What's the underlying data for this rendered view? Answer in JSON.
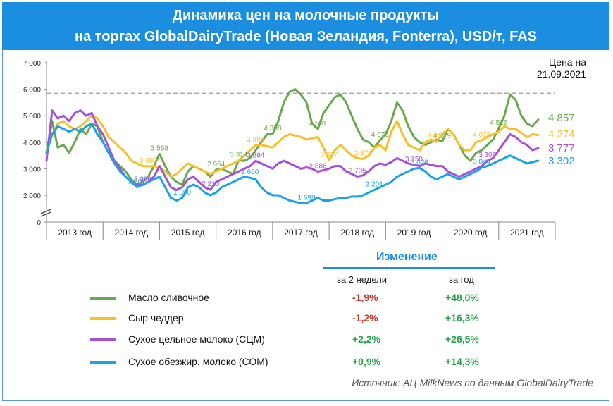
{
  "header": {
    "title_line1": "Динамика цен на молочные продукты",
    "title_line2": "на торгах GlobalDairyTrade (Новая Зеландия, Fonterra), USD/т, FAS"
  },
  "price_date": {
    "line1": "Цена на",
    "line2": "21.09.2021"
  },
  "changes": {
    "title": "Изменение",
    "col_2weeks": "за 2 недели",
    "col_year": "за год"
  },
  "source": "Источник: АЦ MilkNews по данным GlobalDairyTrade",
  "chart_data": {
    "type": "line",
    "y_ticks": [
      "7 000",
      "6 000",
      "5 000",
      "4 000",
      "3 000",
      "2 000",
      "0"
    ],
    "ylim": [
      0,
      7000
    ],
    "x_categories": [
      "2013 год",
      "2014 год",
      "2015 год",
      "2016 год",
      "2017 год",
      "2018 год",
      "2019 год",
      "2020 год",
      "2021 год"
    ],
    "reference_line": 5850,
    "series": [
      {
        "name": "Масло сливочное",
        "color": "#6aa84f",
        "current_label": "4 857",
        "change_2w": "-1,9%",
        "change_year": "+48,0%",
        "x": [
          2013.0,
          2013.1,
          2013.2,
          2013.3,
          2013.4,
          2013.5,
          2013.6,
          2013.7,
          2013.8,
          2013.9,
          2014.0,
          2014.1,
          2014.2,
          2014.3,
          2014.4,
          2014.5,
          2014.6,
          2014.7,
          2014.8,
          2014.9,
          2015.0,
          2015.1,
          2015.2,
          2015.3,
          2015.4,
          2015.5,
          2015.6,
          2015.7,
          2015.8,
          2015.9,
          2016.0,
          2016.1,
          2016.2,
          2016.3,
          2016.4,
          2016.5,
          2016.6,
          2016.7,
          2016.8,
          2016.9,
          2017.0,
          2017.1,
          2017.2,
          2017.3,
          2017.4,
          2017.5,
          2017.6,
          2017.7,
          2017.8,
          2017.9,
          2018.0,
          2018.1,
          2018.2,
          2018.3,
          2018.4,
          2018.5,
          2018.6,
          2018.7,
          2018.8,
          2018.9,
          2019.0,
          2019.1,
          2019.2,
          2019.3,
          2019.4,
          2019.5,
          2019.6,
          2019.7,
          2019.8,
          2019.9,
          2020.0,
          2020.1,
          2020.2,
          2020.3,
          2020.4,
          2020.5,
          2020.6,
          2020.7,
          2020.8,
          2020.9,
          2021.0,
          2021.1,
          2021.2,
          2021.3,
          2021.4,
          2021.5,
          2021.6,
          2021.7
        ],
        "y": [
          3600,
          4800,
          3800,
          3900,
          3600,
          4000,
          4500,
          4300,
          4700,
          4600,
          4000,
          3600,
          3300,
          3100,
          2900,
          2600,
          2400,
          2500,
          2700,
          3100,
          3558,
          3100,
          2700,
          2500,
          2400,
          2900,
          3100,
          3000,
          2900,
          2700,
          2964,
          3000,
          2900,
          2800,
          3314,
          3300,
          3400,
          3700,
          4000,
          4300,
          4308,
          4800,
          5500,
          5900,
          6000,
          5800,
          5500,
          4700,
          4501,
          5100,
          5400,
          5700,
          5800,
          5500,
          5000,
          4500,
          4100,
          4000,
          3800,
          4076,
          4300,
          4800,
          5500,
          5200,
          4600,
          4200,
          4000,
          3900,
          4000,
          4100,
          4029,
          4500,
          4300,
          3900,
          3500,
          3300,
          3600,
          3700,
          3900,
          4100,
          4526,
          5000,
          5800,
          5600,
          5000,
          4700,
          4600,
          4857
        ]
      },
      {
        "name": "Сыр чеддер",
        "color": "#f6c026",
        "current_label": "4 274",
        "change_2w": "-1,2%",
        "change_year": "+16,3%",
        "x": [
          2013.0,
          2013.1,
          2013.2,
          2013.3,
          2013.4,
          2013.5,
          2013.6,
          2013.7,
          2013.8,
          2013.9,
          2014.0,
          2014.1,
          2014.2,
          2014.3,
          2014.4,
          2014.5,
          2014.6,
          2014.7,
          2014.8,
          2014.9,
          2015.0,
          2015.1,
          2015.2,
          2015.3,
          2015.4,
          2015.5,
          2015.6,
          2015.7,
          2015.8,
          2015.9,
          2016.0,
          2016.1,
          2016.2,
          2016.3,
          2016.4,
          2016.5,
          2016.6,
          2016.7,
          2016.8,
          2016.9,
          2017.0,
          2017.1,
          2017.2,
          2017.3,
          2017.4,
          2017.5,
          2017.6,
          2017.7,
          2017.8,
          2017.9,
          2018.0,
          2018.1,
          2018.2,
          2018.3,
          2018.4,
          2018.5,
          2018.6,
          2018.7,
          2018.8,
          2018.9,
          2019.0,
          2019.1,
          2019.2,
          2019.3,
          2019.4,
          2019.5,
          2019.6,
          2019.7,
          2019.8,
          2019.9,
          2020.0,
          2020.1,
          2020.2,
          2020.3,
          2020.4,
          2020.5,
          2020.6,
          2020.7,
          2020.8,
          2020.9,
          2021.0,
          2021.1,
          2021.2,
          2021.3,
          2021.4,
          2021.5,
          2021.6,
          2021.7
        ],
        "y": [
          3700,
          4300,
          4700,
          4800,
          4600,
          4500,
          4600,
          4800,
          5000,
          4900,
          4600,
          4200,
          4000,
          3800,
          3600,
          3300,
          3200,
          3100,
          3090,
          3100,
          3050,
          2900,
          2700,
          2800,
          3000,
          3200,
          3100,
          3000,
          2900,
          2800,
          2900,
          3000,
          3100,
          3200,
          3300,
          3500,
          3700,
          3894,
          3900,
          3850,
          3800,
          4000,
          4200,
          4300,
          4250,
          4200,
          4100,
          4150,
          4200,
          3800,
          3317,
          3700,
          3900,
          3700,
          3500,
          3400,
          3371,
          3500,
          3800,
          3900,
          3700,
          4400,
          4800,
          4300,
          3900,
          3800,
          3700,
          4000,
          4100,
          4015,
          4300,
          4500,
          4300,
          3900,
          3700,
          3700,
          4000,
          4078,
          4200,
          4300,
          4400,
          4600,
          4500,
          4500,
          4350,
          4200,
          4300,
          4274
        ]
      },
      {
        "name": "Сухое цельное молоко (СЦМ)",
        "color": "#a84fd8",
        "current_label": "3 777",
        "change_2w": "+2,2%",
        "change_year": "+26,5%",
        "x": [
          2013.0,
          2013.1,
          2013.2,
          2013.3,
          2013.4,
          2013.5,
          2013.6,
          2013.7,
          2013.8,
          2013.9,
          2014.0,
          2014.1,
          2014.2,
          2014.3,
          2014.4,
          2014.5,
          2014.6,
          2014.7,
          2014.8,
          2014.9,
          2015.0,
          2015.1,
          2015.2,
          2015.3,
          2015.4,
          2015.5,
          2015.6,
          2015.7,
          2015.8,
          2015.9,
          2016.0,
          2016.1,
          2016.2,
          2016.3,
          2016.4,
          2016.5,
          2016.6,
          2016.7,
          2016.8,
          2016.9,
          2017.0,
          2017.1,
          2017.2,
          2017.3,
          2017.4,
          2017.5,
          2017.6,
          2017.7,
          2017.8,
          2017.9,
          2018.0,
          2018.1,
          2018.2,
          2018.3,
          2018.4,
          2018.5,
          2018.6,
          2018.7,
          2018.8,
          2018.9,
          2019.0,
          2019.1,
          2019.2,
          2019.3,
          2019.4,
          2019.5,
          2019.6,
          2019.7,
          2019.8,
          2019.9,
          2020.0,
          2020.1,
          2020.2,
          2020.3,
          2020.4,
          2020.5,
          2020.6,
          2020.7,
          2020.8,
          2020.9,
          2021.0,
          2021.1,
          2021.2,
          2021.3,
          2021.4,
          2021.5,
          2021.6,
          2021.7
        ],
        "y": [
          3300,
          5200,
          4900,
          5000,
          4800,
          5100,
          5200,
          5000,
          5100,
          4600,
          4300,
          3800,
          3300,
          3000,
          2700,
          2500,
          2400,
          2386,
          2500,
          2700,
          3100,
          2700,
          2300,
          2200,
          2300,
          2600,
          2700,
          2500,
          2300,
          2210,
          2500,
          2600,
          2700,
          2800,
          2900,
          3000,
          3100,
          3294,
          3200,
          3100,
          3000,
          3200,
          3300,
          3200,
          3100,
          3000,
          3050,
          3000,
          2886,
          2950,
          3000,
          3100,
          3100,
          2900,
          2800,
          2705,
          2750,
          2900,
          3100,
          3200,
          3150,
          3250,
          3400,
          3300,
          3200,
          3150,
          3100,
          3200,
          3150,
          3100,
          3100,
          2900,
          2800,
          2700,
          2800,
          2900,
          3000,
          3100,
          3306,
          3400,
          3700,
          4000,
          4300,
          4200,
          4000,
          3900,
          3700,
          3777
        ]
      },
      {
        "name": "Сухое обезжир. молоко (СОМ)",
        "color": "#1aa3e8",
        "current_label": "3 302",
        "change_2w": "+0,9%",
        "change_year": "+14,3%",
        "x": [
          2013.0,
          2013.1,
          2013.2,
          2013.3,
          2013.4,
          2013.5,
          2013.6,
          2013.7,
          2013.8,
          2013.9,
          2014.0,
          2014.1,
          2014.2,
          2014.3,
          2014.4,
          2014.5,
          2014.6,
          2014.7,
          2014.8,
          2014.9,
          2015.0,
          2015.1,
          2015.2,
          2015.3,
          2015.4,
          2015.5,
          2015.6,
          2015.7,
          2015.8,
          2015.9,
          2016.0,
          2016.1,
          2016.2,
          2016.3,
          2016.4,
          2016.5,
          2016.6,
          2016.7,
          2016.8,
          2016.9,
          2017.0,
          2017.1,
          2017.2,
          2017.3,
          2017.4,
          2017.5,
          2017.6,
          2017.7,
          2017.8,
          2017.9,
          2018.0,
          2018.1,
          2018.2,
          2018.3,
          2018.4,
          2018.5,
          2018.6,
          2018.7,
          2018.8,
          2018.9,
          2019.0,
          2019.1,
          2019.2,
          2019.3,
          2019.4,
          2019.5,
          2019.6,
          2019.7,
          2019.8,
          2019.9,
          2020.0,
          2020.1,
          2020.2,
          2020.3,
          2020.4,
          2020.5,
          2020.6,
          2020.7,
          2020.8,
          2020.9,
          2021.0,
          2021.1,
          2021.2,
          2021.3,
          2021.4,
          2021.5,
          2021.6,
          2021.7
        ],
        "y": [
          3600,
          4300,
          4600,
          4500,
          4400,
          4500,
          4400,
          4600,
          4700,
          4300,
          4000,
          3600,
          3200,
          2900,
          2700,
          2500,
          2307,
          2400,
          2500,
          2600,
          2700,
          2300,
          1900,
          1800,
          1890,
          2300,
          2400,
          2300,
          2100,
          2000,
          2100,
          2300,
          2400,
          2500,
          2600,
          2700,
          2660,
          2600,
          2300,
          2100,
          2000,
          2000,
          1900,
          1800,
          1750,
          1700,
          1699,
          1800,
          1900,
          1800,
          1800,
          1850,
          1900,
          1900,
          1950,
          1950,
          2000,
          2100,
          2201,
          2300,
          2400,
          2500,
          2700,
          2800,
          2900,
          3000,
          3026,
          2900,
          2700,
          2600,
          2700,
          2800,
          2700,
          2600,
          2700,
          2800,
          2900,
          3044,
          3100,
          3200,
          3300,
          3400,
          3500,
          3400,
          3300,
          3200,
          3250,
          3302
        ]
      }
    ],
    "annotations": [
      {
        "series": 0,
        "x": 2015.0,
        "value": 3558,
        "text": "3 558"
      },
      {
        "series": 0,
        "x": 2016.0,
        "value": 2964,
        "text": "2 964"
      },
      {
        "series": 0,
        "x": 2016.4,
        "value": 3314,
        "text": "3 314"
      },
      {
        "series": 0,
        "x": 2017.0,
        "value": 4308,
        "text": "4 308"
      },
      {
        "series": 0,
        "x": 2017.8,
        "value": 4501,
        "text": "4 501"
      },
      {
        "series": 0,
        "x": 2018.9,
        "value": 4076,
        "text": "4 076"
      },
      {
        "series": 0,
        "x": 2020.0,
        "value": 4029,
        "text": "4 029"
      },
      {
        "series": 0,
        "x": 2021.0,
        "value": 4526,
        "text": "4 526"
      },
      {
        "series": 1,
        "x": 2014.8,
        "value": 3090,
        "text": "3 090"
      },
      {
        "series": 1,
        "x": 2016.7,
        "value": 3894,
        "text": "3 894"
      },
      {
        "series": 1,
        "x": 2018.0,
        "value": 3317,
        "text": "3 317"
      },
      {
        "series": 1,
        "x": 2018.6,
        "value": 3371,
        "text": "3 371"
      },
      {
        "series": 1,
        "x": 2019.9,
        "value": 4015,
        "text": "4 015"
      },
      {
        "series": 1,
        "x": 2020.7,
        "value": 4078,
        "text": "4 078"
      },
      {
        "series": 2,
        "x": 2014.7,
        "value": 2386,
        "text": "2 386"
      },
      {
        "series": 2,
        "x": 2015.9,
        "value": 2210,
        "text": "2 210"
      },
      {
        "series": 2,
        "x": 2016.7,
        "value": 3294,
        "text": "3 294"
      },
      {
        "series": 2,
        "x": 2017.8,
        "value": 2886,
        "text": "2 886"
      },
      {
        "series": 2,
        "x": 2018.5,
        "value": 2705,
        "text": "2 705"
      },
      {
        "series": 2,
        "x": 2019.5,
        "value": 3150,
        "text": "3 150"
      },
      {
        "series": 2,
        "x": 2020.8,
        "value": 3306,
        "text": "3 306"
      },
      {
        "series": 3,
        "x": 2014.6,
        "value": 2307,
        "text": "2 307"
      },
      {
        "series": 3,
        "x": 2015.4,
        "value": 1890,
        "text": "1 890"
      },
      {
        "series": 3,
        "x": 2016.6,
        "value": 2660,
        "text": "2 660"
      },
      {
        "series": 3,
        "x": 2017.6,
        "value": 1699,
        "text": "1 699"
      },
      {
        "series": 3,
        "x": 2018.8,
        "value": 2201,
        "text": "2 201"
      },
      {
        "series": 3,
        "x": 2019.6,
        "value": 3026,
        "text": "3 026"
      },
      {
        "series": 3,
        "x": 2020.7,
        "value": 3044,
        "text": "3 044"
      }
    ]
  }
}
